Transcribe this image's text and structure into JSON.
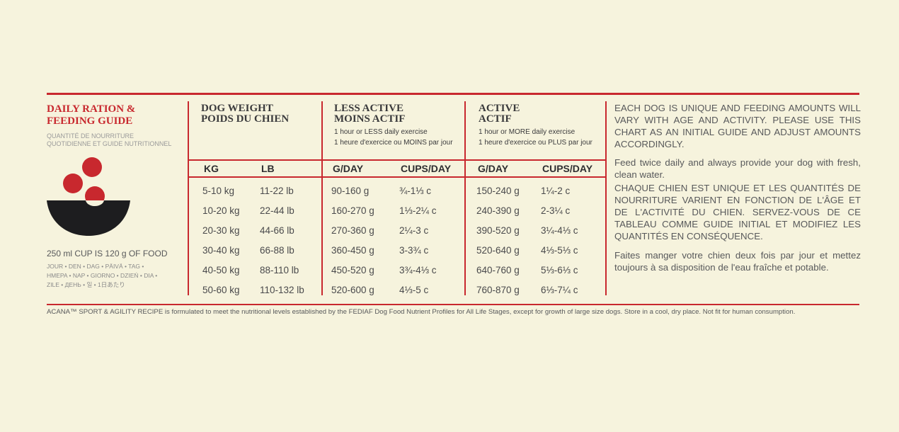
{
  "left": {
    "title_lines": [
      "DAILY RATION &",
      "FEEDING GUIDE"
    ],
    "subtitle_lines": [
      "QUANTITÉ DE NOURRITURE",
      "QUOTIDIENNE ET GUIDE NUTRITIONNEL"
    ],
    "cup_note": "250 ml CUP IS 120 g OF FOOD",
    "day_lines": [
      "JOUR • DEN • DAG • PÄIVÄ • TAG •",
      "HMEPA • NAP • GIORNO • DZIEŃ • DIA •",
      "ZILE • ДЕНЬ • 일 • 1日あたり"
    ]
  },
  "table": {
    "groups": [
      {
        "title_lines": [
          "DOG WEIGHT",
          "POIDS DU CHIEN"
        ],
        "note_lines": []
      },
      {
        "title_lines": [
          "LESS ACTIVE",
          "MOINS ACTIF"
        ],
        "note_lines": [
          "1 hour or LESS daily exercise",
          "1 heure d'exercice ou MOINS par jour"
        ]
      },
      {
        "title_lines": [
          "ACTIVE",
          "ACTIF"
        ],
        "note_lines": [
          "1 hour or MORE daily exercise",
          "1 heure d'exercice ou PLUS par jour"
        ]
      }
    ],
    "columns": [
      "KG",
      "LB",
      "G/DAY",
      "CUPS/DAY",
      "G/DAY",
      "CUPS/DAY"
    ],
    "rows": [
      [
        "5-10 kg",
        "11-22 lb",
        "90-160 g",
        "¾-1⅓ c",
        "150-240 g",
        "1¼-2 c"
      ],
      [
        "10-20 kg",
        "22-44 lb",
        "160-270 g",
        "1⅓-2¼ c",
        "240-390 g",
        "2-3¼ c"
      ],
      [
        "20-30 kg",
        "44-66 lb",
        "270-360 g",
        "2¼-3 c",
        "390-520 g",
        "3¼-4⅓ c"
      ],
      [
        "30-40 kg",
        "66-88 lb",
        "360-450 g",
        "3-3¾ c",
        "520-640 g",
        "4⅓-5⅓ c"
      ],
      [
        "40-50 kg",
        "88-110 lb",
        "450-520 g",
        "3¾-4⅓ c",
        "640-760 g",
        "5⅓-6⅓ c"
      ],
      [
        "50-60 kg",
        "110-132 lb",
        "520-600 g",
        "4⅓-5 c",
        "760-870 g",
        "6⅓-7¼ c"
      ]
    ]
  },
  "right": {
    "paragraphs": [
      "EACH DOG IS UNIQUE AND FEEDING AMOUNTS WILL VARY WITH AGE AND ACTIVITY. PLEASE USE THIS CHART AS AN INITIAL GUIDE AND ADJUST AMOUNTS ACCORDINGLY.",
      "Feed twice daily and always provide your dog with fresh, clean water.",
      "CHAQUE CHIEN EST UNIQUE ET LES QUANTITÉS DE NOURRITURE VARIENT EN FONCTION DE L'ÂGE ET DE L'ACTIVITÉ DU CHIEN. SERVEZ-VOUS DE CE TABLEAU COMME GUIDE INITIAL ET MODIFIEZ LES QUANTITÉS EN CONSÉQUENCE.",
      "Faites manger votre chien deux fois par jour et mettez toujours à sa disposition de l'eau fraîche et potable."
    ]
  },
  "footer": "ACANA™ SPORT & AGILITY RECIPE is formulated to meet the nutritional levels established by the FEDIAF Dog Food Nutrient Profiles for All Life Stages, except for growth of large size dogs. Store in a cool, dry place. Not fit for human consumption."
}
